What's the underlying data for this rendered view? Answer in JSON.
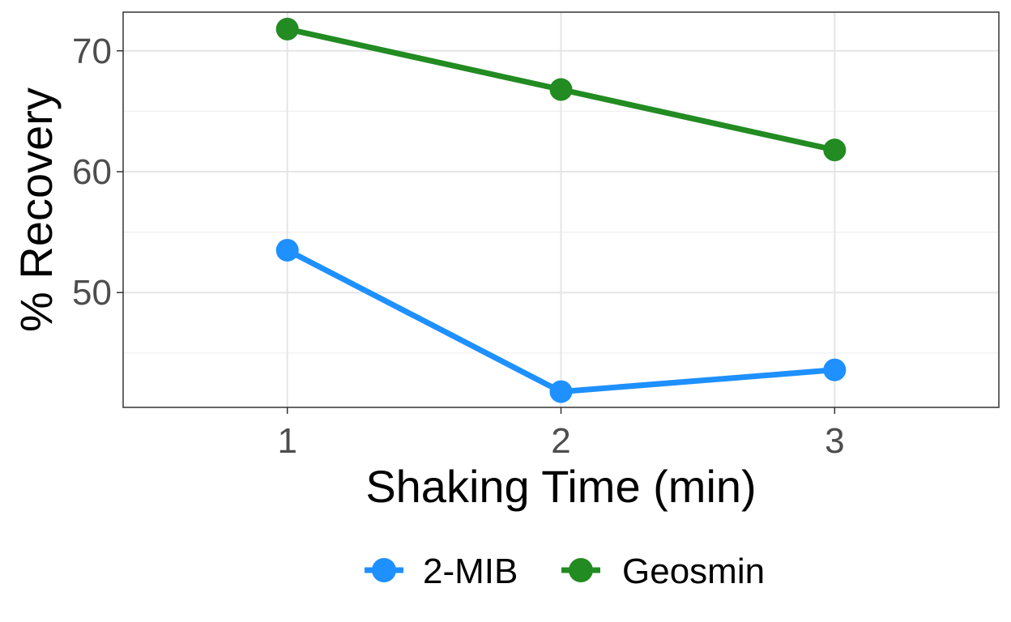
{
  "chart_data": {
    "type": "line",
    "title": "",
    "xlabel": "Shaking Time (min)",
    "ylabel": "% Recovery",
    "x": [
      1,
      2,
      3
    ],
    "xticks": [
      "1",
      "2",
      "3"
    ],
    "xlim": [
      0.4,
      3.6
    ],
    "yticks": [
      "50",
      "60",
      "70"
    ],
    "ytick_values": [
      50,
      60,
      70
    ],
    "ylim": [
      40.5,
      73.2
    ],
    "grid": true,
    "legend_position": "bottom",
    "series": [
      {
        "name": "2-MIB",
        "color": "#1E90FF",
        "values": [
          53.5,
          41.8,
          43.6
        ]
      },
      {
        "name": "Geosmin",
        "color": "#228B22",
        "values": [
          71.8,
          66.8,
          61.8
        ]
      }
    ]
  }
}
